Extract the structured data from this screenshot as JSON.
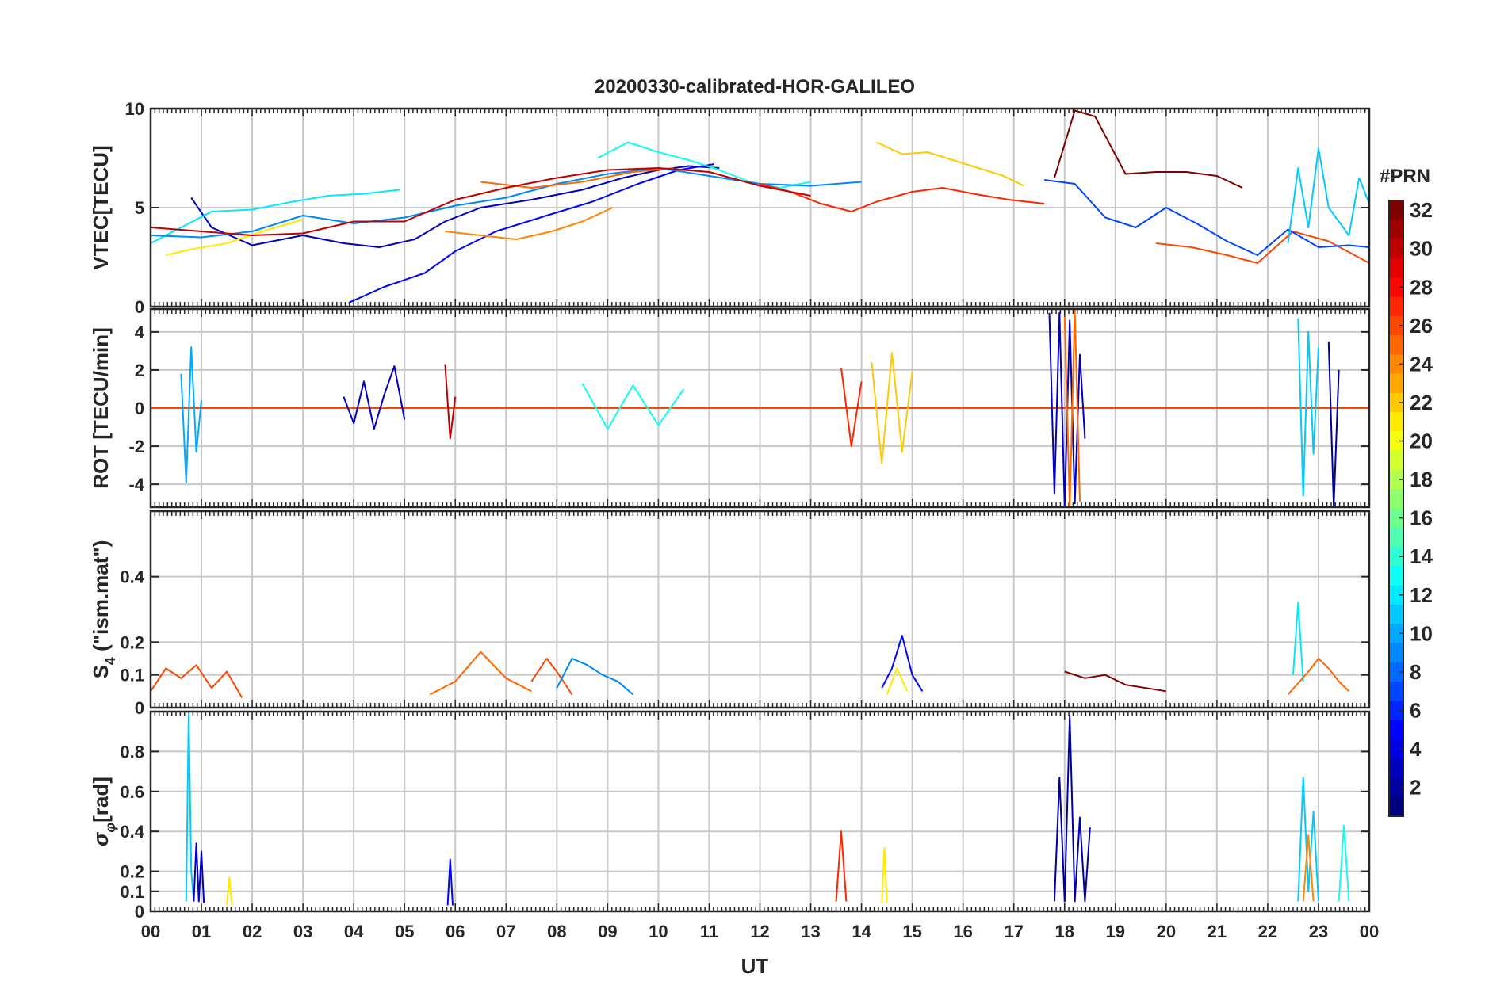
{
  "chart_data": {
    "type": "line",
    "title": "20200330-calibrated-HOR-GALILEO",
    "xlabel": "UT",
    "x_ticks": [
      "00",
      "01",
      "02",
      "03",
      "04",
      "05",
      "06",
      "07",
      "08",
      "09",
      "10",
      "11",
      "12",
      "13",
      "14",
      "15",
      "16",
      "17",
      "18",
      "19",
      "20",
      "21",
      "22",
      "23",
      "00"
    ],
    "xlim": [
      0,
      24
    ],
    "colorbar": {
      "label": "#PRN",
      "range": [
        1,
        32
      ],
      "ticks": [
        2,
        4,
        6,
        8,
        10,
        12,
        14,
        16,
        18,
        20,
        22,
        24,
        26,
        28,
        30,
        32
      ],
      "colormap": "jet"
    },
    "panels": [
      {
        "name": "vtec",
        "ylabel": "VTEC[TECU]",
        "ylim": [
          0,
          10
        ],
        "yticks": [
          0,
          5,
          10
        ],
        "series": [
          {
            "prn": 3,
            "x": [
              0.8,
              1.2,
              2.0,
              3.0,
              3.8,
              4.5,
              5.2,
              5.8,
              6.5,
              7.5,
              8.5,
              9.3,
              10.0,
              10.6,
              11.2
            ],
            "y": [
              5.5,
              4.0,
              3.1,
              3.6,
              3.2,
              3.0,
              3.4,
              4.3,
              5.0,
              5.4,
              5.9,
              6.5,
              6.9,
              7.1,
              7.0
            ]
          },
          {
            "prn": 5,
            "x": [
              3.9,
              4.6,
              5.4,
              6.0,
              6.8,
              7.8,
              8.7,
              9.6,
              10.4,
              11.1
            ],
            "y": [
              0.2,
              1.0,
              1.7,
              2.8,
              3.8,
              4.6,
              5.3,
              6.2,
              6.9,
              7.2
            ]
          },
          {
            "prn": 12,
            "x": [
              0.0,
              0.6,
              1.2,
              2.0,
              2.8,
              3.5,
              4.2,
              4.9
            ],
            "y": [
              3.2,
              4.0,
              4.8,
              4.9,
              5.3,
              5.6,
              5.7,
              5.9
            ]
          },
          {
            "prn": 13,
            "x": [
              8.8,
              9.4,
              10.0,
              10.6,
              11.2,
              11.8,
              12.4,
              13.0
            ],
            "y": [
              7.5,
              8.3,
              7.8,
              7.4,
              6.9,
              6.3,
              6.0,
              6.3
            ]
          },
          {
            "prn": 9,
            "x": [
              0.0,
              1.0,
              2.0,
              3.0,
              4.0,
              5.0,
              6.0,
              7.0,
              8.0,
              9.0,
              10.0,
              11.0,
              12.0,
              13.0,
              14.0
            ],
            "y": [
              3.6,
              3.5,
              3.8,
              4.6,
              4.2,
              4.5,
              5.1,
              5.5,
              6.2,
              6.7,
              7.0,
              6.6,
              6.2,
              6.1,
              6.3
            ]
          },
          {
            "prn": 21,
            "x": [
              0.3,
              0.8,
              1.5,
              2.2,
              3.0
            ],
            "y": [
              2.6,
              2.9,
              3.2,
              3.8,
              4.4
            ]
          },
          {
            "prn": 22,
            "x": [
              14.3,
              14.8,
              15.3,
              15.8,
              16.3,
              16.8,
              17.2
            ],
            "y": [
              8.3,
              7.7,
              7.8,
              7.4,
              7.0,
              6.6,
              6.1
            ]
          },
          {
            "prn": 24,
            "x": [
              5.8,
              6.5,
              7.2,
              7.9,
              8.5,
              9.1
            ],
            "y": [
              3.8,
              3.6,
              3.4,
              3.8,
              4.3,
              5.0
            ]
          },
          {
            "prn": 25,
            "x": [
              6.5,
              7.5,
              8.5,
              9.5,
              10.3
            ],
            "y": [
              6.3,
              6.0,
              6.3,
              6.8,
              7.0
            ]
          },
          {
            "prn": 26,
            "x": [
              19.8,
              20.5,
              21.2,
              21.8,
              22.5,
              23.2,
              24.0
            ],
            "y": [
              3.2,
              3.0,
              2.6,
              2.2,
              3.8,
              3.3,
              2.2
            ]
          },
          {
            "prn": 27,
            "x": [
              12.0,
              12.6,
              13.2,
              13.8,
              14.3,
              15.0,
              15.6,
              16.2,
              16.9,
              17.6
            ],
            "y": [
              6.2,
              5.8,
              5.2,
              4.8,
              5.3,
              5.8,
              6.0,
              5.7,
              5.4,
              5.2
            ]
          },
          {
            "prn": 30,
            "x": [
              0.0,
              1.0,
              2.0,
              3.0,
              4.0,
              5.0,
              6.0,
              7.0,
              8.0,
              9.0,
              10.0,
              11.0,
              12.0,
              13.0
            ],
            "y": [
              4.0,
              3.8,
              3.6,
              3.7,
              4.3,
              4.3,
              5.4,
              6.0,
              6.5,
              6.9,
              7.0,
              6.8,
              6.1,
              5.6
            ]
          },
          {
            "prn": 32,
            "x": [
              17.8,
              18.2,
              18.6,
              19.2,
              19.8,
              20.4,
              21.0,
              21.5
            ],
            "y": [
              6.5,
              9.9,
              9.6,
              6.7,
              6.8,
              6.8,
              6.6,
              6.0
            ]
          },
          {
            "prn": 7,
            "x": [
              17.6,
              18.2,
              18.8,
              19.4,
              20.0,
              20.6,
              21.2,
              21.8,
              22.4,
              23.0,
              23.6,
              24.0
            ],
            "y": [
              6.4,
              6.2,
              4.5,
              4.0,
              5.0,
              4.2,
              3.3,
              2.6,
              3.9,
              3.0,
              3.1,
              3.0
            ]
          },
          {
            "prn": 11,
            "x": [
              22.4,
              22.6,
              22.8,
              23.0,
              23.2,
              23.4,
              23.6,
              23.8,
              24.0
            ],
            "y": [
              3.2,
              7.0,
              4.0,
              8.0,
              5.0,
              4.3,
              3.6,
              6.5,
              5.2
            ]
          }
        ]
      },
      {
        "name": "rot",
        "ylabel": "ROT [TECU/min]",
        "ylim": [
          -5.2,
          5.2
        ],
        "yticks": [
          -4,
          -2,
          0,
          2,
          4
        ],
        "series": [
          {
            "prn": 10,
            "x": [
              0.6,
              0.7,
              0.8,
              0.9,
              1.0
            ],
            "y": [
              1.8,
              -3.9,
              3.2,
              -2.3,
              0.4
            ]
          },
          {
            "prn": 3,
            "x": [
              3.8,
              4.0,
              4.2,
              4.4,
              4.6,
              4.8,
              5.0
            ],
            "y": [
              0.6,
              -0.8,
              1.4,
              -1.1,
              0.7,
              2.2,
              -0.6
            ]
          },
          {
            "prn": 30,
            "x": [
              5.8,
              5.9,
              6.0
            ],
            "y": [
              2.3,
              -1.6,
              0.6
            ]
          },
          {
            "prn": 13,
            "x": [
              8.5,
              9.0,
              9.5,
              10.0,
              10.5
            ],
            "y": [
              1.3,
              -1.1,
              1.2,
              -0.9,
              1.0
            ]
          },
          {
            "prn": 22,
            "x": [
              14.2,
              14.4,
              14.6,
              14.8,
              15.0
            ],
            "y": [
              2.4,
              -2.9,
              2.9,
              -2.3,
              1.9
            ]
          },
          {
            "prn": 27,
            "x": [
              13.6,
              13.8,
              14.0
            ],
            "y": [
              2.1,
              -2.0,
              1.4
            ]
          },
          {
            "prn": 3,
            "x": [
              17.7,
              17.8,
              17.9,
              18.0,
              18.1,
              18.2,
              18.3,
              18.4
            ],
            "y": [
              5.0,
              -4.5,
              5.0,
              -5.2,
              4.6,
              -5.0,
              2.8,
              -1.6
            ]
          },
          {
            "prn": 25,
            "x": [
              18.0,
              18.1,
              18.2,
              18.3
            ],
            "y": [
              4.8,
              -5.2,
              5.2,
              -4.9
            ]
          },
          {
            "prn": 11,
            "x": [
              22.6,
              22.7,
              22.8,
              22.9,
              23.0
            ],
            "y": [
              4.7,
              -4.6,
              4.0,
              -2.4,
              3.2
            ]
          },
          {
            "prn": 2,
            "x": [
              23.2,
              23.3,
              23.4
            ],
            "y": [
              3.5,
              -5.2,
              2.0
            ]
          }
        ]
      },
      {
        "name": "s4",
        "ylabel": "S4 (\"ism.mat\")",
        "ylabel_main": "S",
        "ylabel_sub": "4",
        "ylabel_rest": " (\"ism.mat\")",
        "ylim": [
          0,
          0.6
        ],
        "yticks": [
          0,
          0.1,
          0.2,
          0.4
        ],
        "series": [
          {
            "prn": 26,
            "x": [
              0.0,
              0.3,
              0.6,
              0.9,
              1.2,
              1.5,
              1.8
            ],
            "y": [
              0.05,
              0.12,
              0.09,
              0.13,
              0.06,
              0.11,
              0.03
            ]
          },
          {
            "prn": 25,
            "x": [
              5.5,
              6.0,
              6.5,
              7.0,
              7.5
            ],
            "y": [
              0.04,
              0.08,
              0.17,
              0.09,
              0.05
            ]
          },
          {
            "prn": 26,
            "x": [
              7.5,
              7.8,
              8.0,
              8.3
            ],
            "y": [
              0.08,
              0.15,
              0.11,
              0.04
            ]
          },
          {
            "prn": 9,
            "x": [
              8.0,
              8.3,
              8.6,
              8.9,
              9.2,
              9.5
            ],
            "y": [
              0.06,
              0.15,
              0.13,
              0.1,
              0.08,
              0.04
            ]
          },
          {
            "prn": 5,
            "x": [
              14.4,
              14.6,
              14.8,
              15.0,
              15.2
            ],
            "y": [
              0.06,
              0.12,
              0.22,
              0.1,
              0.05
            ]
          },
          {
            "prn": 21,
            "x": [
              14.5,
              14.7,
              14.9
            ],
            "y": [
              0.04,
              0.12,
              0.05
            ]
          },
          {
            "prn": 32,
            "x": [
              18.0,
              18.4,
              18.8,
              19.2,
              19.6,
              20.0
            ],
            "y": [
              0.11,
              0.09,
              0.1,
              0.07,
              0.06,
              0.05
            ]
          },
          {
            "prn": 12,
            "x": [
              22.5,
              22.6,
              22.7
            ],
            "y": [
              0.1,
              0.32,
              0.08
            ]
          },
          {
            "prn": 25,
            "x": [
              22.4,
              22.8,
              23.0,
              23.2,
              23.4,
              23.6
            ],
            "y": [
              0.04,
              0.11,
              0.15,
              0.12,
              0.08,
              0.05
            ]
          }
        ]
      },
      {
        "name": "sigma_phi",
        "ylabel": "σφ[rad]",
        "ylabel_main": "σ",
        "ylabel_sub": "φ",
        "ylabel_rest": "[rad]",
        "ylim": [
          0,
          1.0
        ],
        "yticks": [
          0,
          0.1,
          0.2,
          0.4,
          0.6,
          0.8
        ],
        "series": [
          {
            "prn": 11,
            "x": [
              0.7,
              0.75,
              0.8,
              0.85
            ],
            "y": [
              0.05,
              1.0,
              0.2,
              0.05
            ]
          },
          {
            "prn": 3,
            "x": [
              0.85,
              0.9,
              0.95,
              1.0,
              1.05
            ],
            "y": [
              0.05,
              0.34,
              0.05,
              0.3,
              0.04
            ]
          },
          {
            "prn": 21,
            "x": [
              1.5,
              1.55,
              1.6
            ],
            "y": [
              0.03,
              0.17,
              0.03
            ]
          },
          {
            "prn": 5,
            "x": [
              5.85,
              5.9,
              5.95
            ],
            "y": [
              0.03,
              0.26,
              0.03
            ]
          },
          {
            "prn": 27,
            "x": [
              13.5,
              13.6,
              13.7
            ],
            "y": [
              0.05,
              0.4,
              0.05
            ]
          },
          {
            "prn": 21,
            "x": [
              14.4,
              14.45,
              14.5
            ],
            "y": [
              0.04,
              0.32,
              0.04
            ]
          },
          {
            "prn": 2,
            "x": [
              17.8,
              17.9,
              18.0,
              18.1,
              18.2,
              18.3,
              18.4,
              18.5
            ],
            "y": [
              0.05,
              0.67,
              0.05,
              0.98,
              0.05,
              0.47,
              0.05,
              0.42
            ]
          },
          {
            "prn": 11,
            "x": [
              22.6,
              22.7,
              22.8,
              22.9,
              23.0
            ],
            "y": [
              0.05,
              0.67,
              0.1,
              0.5,
              0.05
            ]
          },
          {
            "prn": 24,
            "x": [
              22.7,
              22.8,
              22.9
            ],
            "y": [
              0.05,
              0.38,
              0.05
            ]
          },
          {
            "prn": 13,
            "x": [
              23.4,
              23.5,
              23.6
            ],
            "y": [
              0.05,
              0.43,
              0.05
            ]
          }
        ]
      }
    ]
  }
}
